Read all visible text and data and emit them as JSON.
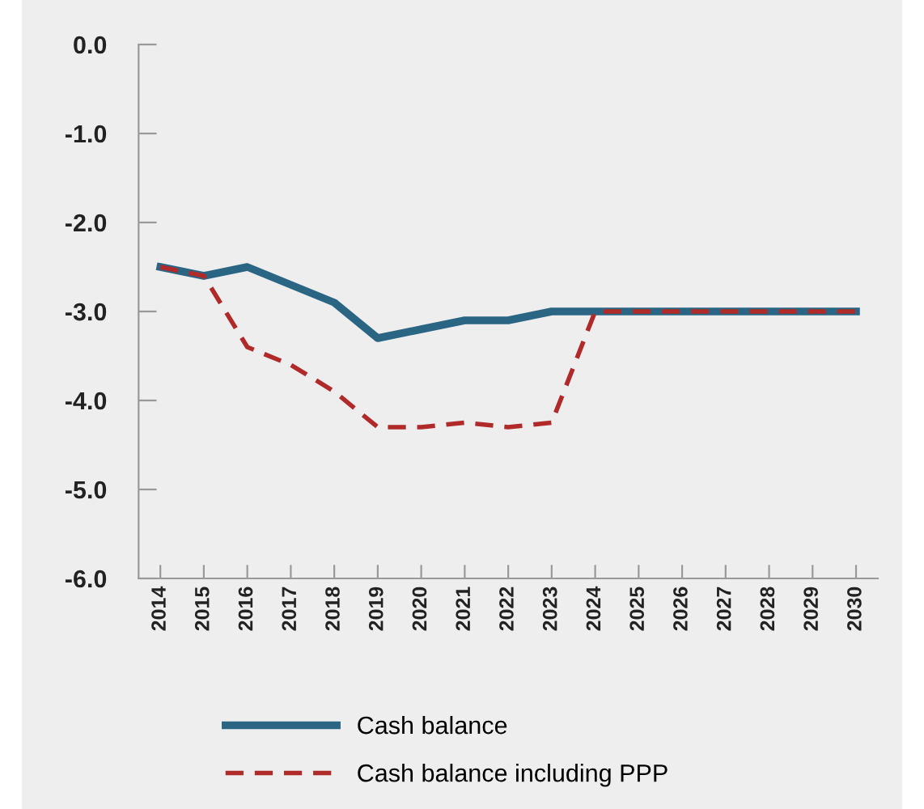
{
  "chart_data": {
    "type": "line",
    "categories": [
      "2014",
      "2015",
      "2016",
      "2017",
      "2018",
      "2019",
      "2020",
      "2021",
      "2022",
      "2023",
      "2024",
      "2025",
      "2026",
      "2027",
      "2028",
      "2029",
      "2030"
    ],
    "series": [
      {
        "name": "Cash balance",
        "color": "#2b6584",
        "line_style": "solid",
        "values": [
          -2.5,
          -2.6,
          -2.5,
          -2.7,
          -2.9,
          -3.3,
          -3.2,
          -3.1,
          -3.1,
          -3.0,
          -3.0,
          -3.0,
          -3.0,
          -3.0,
          -3.0,
          -3.0,
          -3.0
        ]
      },
      {
        "name": "Cash balance including PPP",
        "color": "#b02a2a",
        "line_style": "dashed",
        "values": [
          -2.5,
          -2.6,
          -3.4,
          -3.6,
          -3.9,
          -4.3,
          -4.3,
          -4.25,
          -4.3,
          -4.25,
          -3.0,
          -3.0,
          -3.0,
          -3.0,
          -3.0,
          -3.0,
          -3.0
        ]
      }
    ],
    "ylim": [
      -6,
      0
    ],
    "yticks": [
      {
        "value": 0,
        "label": "0.0"
      },
      {
        "value": -1,
        "label": "-1.0"
      },
      {
        "value": -2,
        "label": "-2.0"
      },
      {
        "value": -3,
        "label": "-3.0"
      },
      {
        "value": -4,
        "label": "-4.0"
      },
      {
        "value": -5,
        "label": "-5.0"
      },
      {
        "value": -6,
        "label": "-6.0"
      }
    ],
    "grid": false,
    "legend": "bottom",
    "marker": "none"
  }
}
